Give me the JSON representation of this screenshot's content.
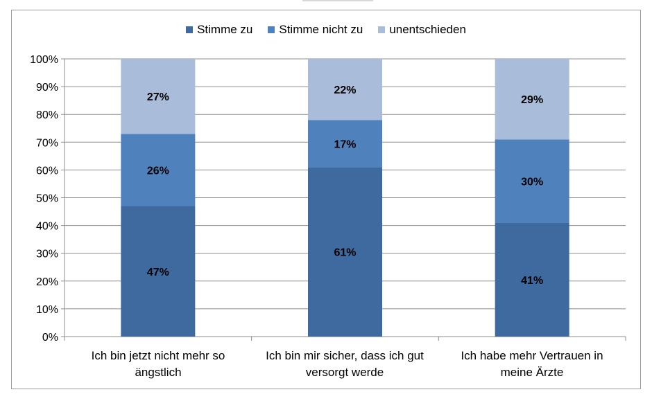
{
  "chart_data": {
    "type": "bar",
    "stacked": true,
    "categories": [
      "Ich bin jetzt nicht mehr so ängstlich",
      "Ich bin mir sicher, dass ich gut versorgt werde",
      "Ich habe mehr Vertrauen in meine Ärzte"
    ],
    "series": [
      {
        "name": "Stimme zu",
        "values": [
          47,
          61,
          41
        ],
        "labels": [
          "47%",
          "61%",
          "41%"
        ],
        "color": "#3f6aa0"
      },
      {
        "name": "Stimme nicht zu",
        "values": [
          26,
          17,
          30
        ],
        "labels": [
          "26%",
          "17%",
          "30%"
        ],
        "color": "#4f81bd"
      },
      {
        "name": "unentschieden",
        "values": [
          27,
          22,
          29
        ],
        "labels": [
          "27%",
          "22%",
          "29%"
        ],
        "color": "#a9bcd9"
      }
    ],
    "ylim": [
      0,
      100
    ],
    "yticks": [
      "0%",
      "10%",
      "20%",
      "30%",
      "40%",
      "50%",
      "60%",
      "70%",
      "80%",
      "90%",
      "100%"
    ],
    "grid": true,
    "legend_position": "top"
  }
}
